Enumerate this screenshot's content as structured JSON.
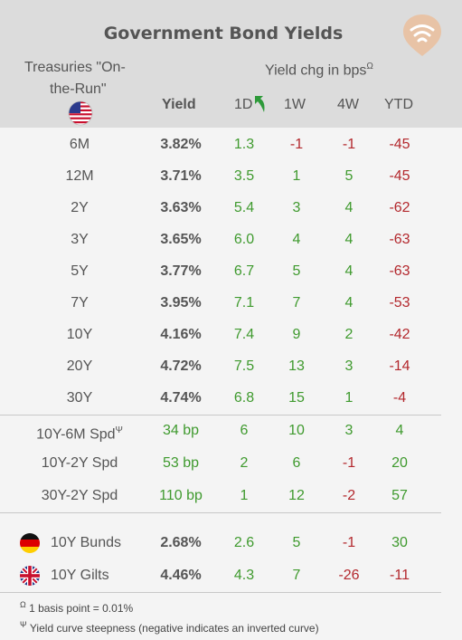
{
  "title": "Government Bond Yields",
  "header": {
    "treasuries_line1": "Treasuries   \"On-",
    "treasuries_line2": "the-Run\"",
    "yield_chg": "Yield chg in bps",
    "yield_chg_sup": "Ω",
    "yield": "Yield",
    "col_1d": "1D",
    "col_1w": "1W",
    "col_4w": "4W",
    "col_ytd": "YTD"
  },
  "treasuries": [
    {
      "label": "6M",
      "yield": "3.82%",
      "d1": "1.3",
      "w1": "-1",
      "w4": "-1",
      "ytd": "-45"
    },
    {
      "label": "12M",
      "yield": "3.71%",
      "d1": "3.5",
      "w1": "1",
      "w4": "5",
      "ytd": "-45"
    },
    {
      "label": "2Y",
      "yield": "3.63%",
      "d1": "5.4",
      "w1": "3",
      "w4": "4",
      "ytd": "-62"
    },
    {
      "label": "3Y",
      "yield": "3.65%",
      "d1": "6.0",
      "w1": "4",
      "w4": "4",
      "ytd": "-63"
    },
    {
      "label": "5Y",
      "yield": "3.77%",
      "d1": "6.7",
      "w1": "5",
      "w4": "4",
      "ytd": "-63"
    },
    {
      "label": "7Y",
      "yield": "3.95%",
      "d1": "7.1",
      "w1": "7",
      "w4": "4",
      "ytd": "-53"
    },
    {
      "label": "10Y",
      "yield": "4.16%",
      "d1": "7.4",
      "w1": "9",
      "w4": "2",
      "ytd": "-42"
    },
    {
      "label": "20Y",
      "yield": "4.72%",
      "d1": "7.5",
      "w1": "13",
      "w4": "3",
      "ytd": "-14"
    },
    {
      "label": "30Y",
      "yield": "4.74%",
      "d1": "6.8",
      "w1": "15",
      "w4": "1",
      "ytd": "-4"
    }
  ],
  "spreads": [
    {
      "label": "10Y-6M Spd",
      "sup": "Ψ",
      "yield": "34 bp",
      "d1": "6",
      "w1": "10",
      "w4": "3",
      "ytd": "4"
    },
    {
      "label": "10Y-2Y Spd",
      "sup": "",
      "yield": "53 bp",
      "d1": "2",
      "w1": "6",
      "w4": "-1",
      "ytd": "20"
    },
    {
      "label": "30Y-2Y Spd",
      "sup": "",
      "yield": "110 bp",
      "d1": "1",
      "w1": "12",
      "w4": "-2",
      "ytd": "57"
    }
  ],
  "foreign": [
    {
      "label": "10Y Bunds",
      "flag": "germany-flag-icon",
      "yield": "2.68%",
      "d1": "2.6",
      "w1": "5",
      "w4": "-1",
      "ytd": "30"
    },
    {
      "label": "10Y Gilts",
      "flag": "uk-flag-icon",
      "yield": "4.46%",
      "d1": "4.3",
      "w1": "7",
      "w4": "-26",
      "ytd": "-11"
    }
  ],
  "notes": {
    "note1_sym": "Ω",
    "note1": "1 basis point = 0.01%",
    "note2_sym": "Ψ",
    "note2": "Yield curve steepness (negative indicates an inverted curve)"
  },
  "colors": {
    "positive": "#3f9a2e",
    "negative": "#b3282d",
    "header_bg": "#dcdcdc",
    "accent_arrow": "#2e9a3a",
    "logo": "#e8c3a6"
  },
  "icons": {
    "us_flag": "us-flag-icon",
    "logo": "logo-icon",
    "arrow": "curved-arrow-up-icon"
  }
}
